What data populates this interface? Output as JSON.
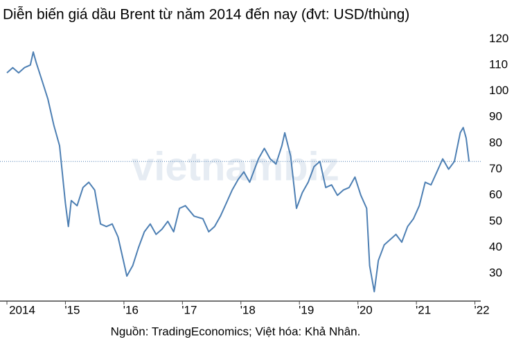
{
  "chart_data": {
    "type": "line",
    "title": "Diễn biến giá dầu Brent từ năm 2014 đến nay (đvt: USD/thùng)",
    "source": "Nguồn: TradingEconomics; Việt hóa: Khả Nhân.",
    "watermark": "vietnambiz",
    "color": "#4d7fb3",
    "reference_line": 73,
    "grid": false,
    "x": [
      2014.0,
      2014.1,
      2014.2,
      2014.3,
      2014.4,
      2014.45,
      2014.5,
      2014.6,
      2014.7,
      2014.8,
      2014.9,
      2015.0,
      2015.05,
      2015.1,
      2015.2,
      2015.3,
      2015.4,
      2015.5,
      2015.6,
      2015.7,
      2015.8,
      2015.9,
      2016.0,
      2016.05,
      2016.15,
      2016.25,
      2016.35,
      2016.45,
      2016.55,
      2016.65,
      2016.75,
      2016.85,
      2016.95,
      2017.05,
      2017.2,
      2017.35,
      2017.45,
      2017.55,
      2017.65,
      2017.75,
      2017.85,
      2017.95,
      2018.05,
      2018.15,
      2018.3,
      2018.4,
      2018.5,
      2018.6,
      2018.7,
      2018.75,
      2018.85,
      2018.95,
      2019.05,
      2019.15,
      2019.25,
      2019.35,
      2019.45,
      2019.55,
      2019.65,
      2019.75,
      2019.85,
      2019.95,
      2020.05,
      2020.15,
      2020.2,
      2020.28,
      2020.35,
      2020.45,
      2020.55,
      2020.65,
      2020.75,
      2020.85,
      2020.95,
      2021.05,
      2021.15,
      2021.25,
      2021.35,
      2021.45,
      2021.55,
      2021.65,
      2021.75,
      2021.8,
      2021.85,
      2021.9
    ],
    "values": [
      107,
      109,
      107,
      109,
      110,
      115,
      111,
      104,
      97,
      87,
      79,
      57,
      48,
      58,
      56,
      63,
      65,
      62,
      49,
      48,
      49,
      44,
      34,
      29,
      33,
      40,
      46,
      49,
      45,
      47,
      50,
      46,
      55,
      56,
      52,
      51,
      46,
      48,
      52,
      57,
      62,
      66,
      69,
      65,
      74,
      78,
      74,
      72,
      79,
      84,
      75,
      55,
      61,
      65,
      71,
      73,
      63,
      64,
      60,
      62,
      63,
      67,
      60,
      55,
      33,
      23,
      35,
      41,
      43,
      45,
      42,
      48,
      51,
      56,
      65,
      64,
      69,
      74,
      70,
      73,
      84,
      86,
      82,
      73
    ],
    "xlim": [
      2014,
      2022.1
    ],
    "xticks": [
      {
        "value": 2014,
        "label": "2014"
      },
      {
        "value": 2015,
        "label": "'15"
      },
      {
        "value": 2016,
        "label": "'16"
      },
      {
        "value": 2017,
        "label": "'17"
      },
      {
        "value": 2018,
        "label": "'18"
      },
      {
        "value": 2019,
        "label": "'19"
      },
      {
        "value": 2020,
        "label": "'20"
      },
      {
        "value": 2021,
        "label": "'21"
      },
      {
        "value": 2022,
        "label": "'22"
      }
    ],
    "ylim": [
      19.4,
      123
    ],
    "yticks": [
      30,
      40,
      50,
      60,
      70,
      80,
      90,
      100,
      110,
      120
    ]
  }
}
